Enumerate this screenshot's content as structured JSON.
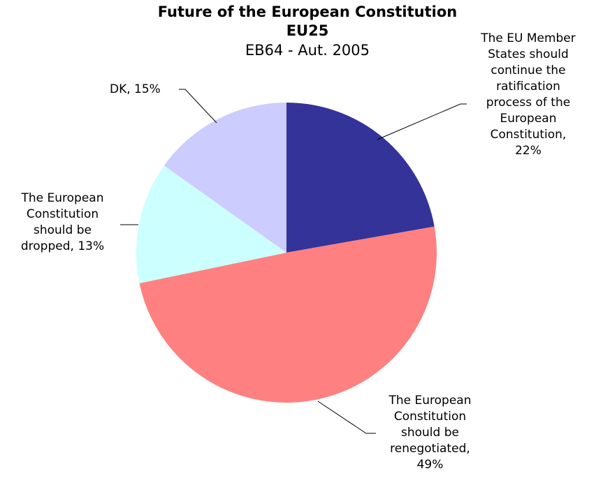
{
  "chart_data": {
    "type": "pie",
    "title": "Future of the European Constitution",
    "title_line2": "EU25",
    "subtitle": "EB64 - Aut. 2005",
    "slices": [
      {
        "label": "The EU Member States should continue the ratification process of the European Constitution, 22%",
        "display": "The EU Member\nStates should\ncontinue the\nratification\nprocess of the\nEuropean\nConstitution,\n22%",
        "value": 22,
        "color": "#333399"
      },
      {
        "label": "The European Constitution should be renegotiated, 49%",
        "display": "The European\nConstitution\nshould be\nrenegotiated,\n49%",
        "value": 49,
        "color": "#FF8080"
      },
      {
        "label": "The European Constitution should be dropped, 13%",
        "display": "The European\nConstitution\nshould be\ndropped, 13%",
        "value": 13,
        "color": "#CCFFFF"
      },
      {
        "label": "DK, 15%",
        "display": "DK, 15%",
        "value": 15,
        "color": "#CCCCFF"
      }
    ]
  }
}
